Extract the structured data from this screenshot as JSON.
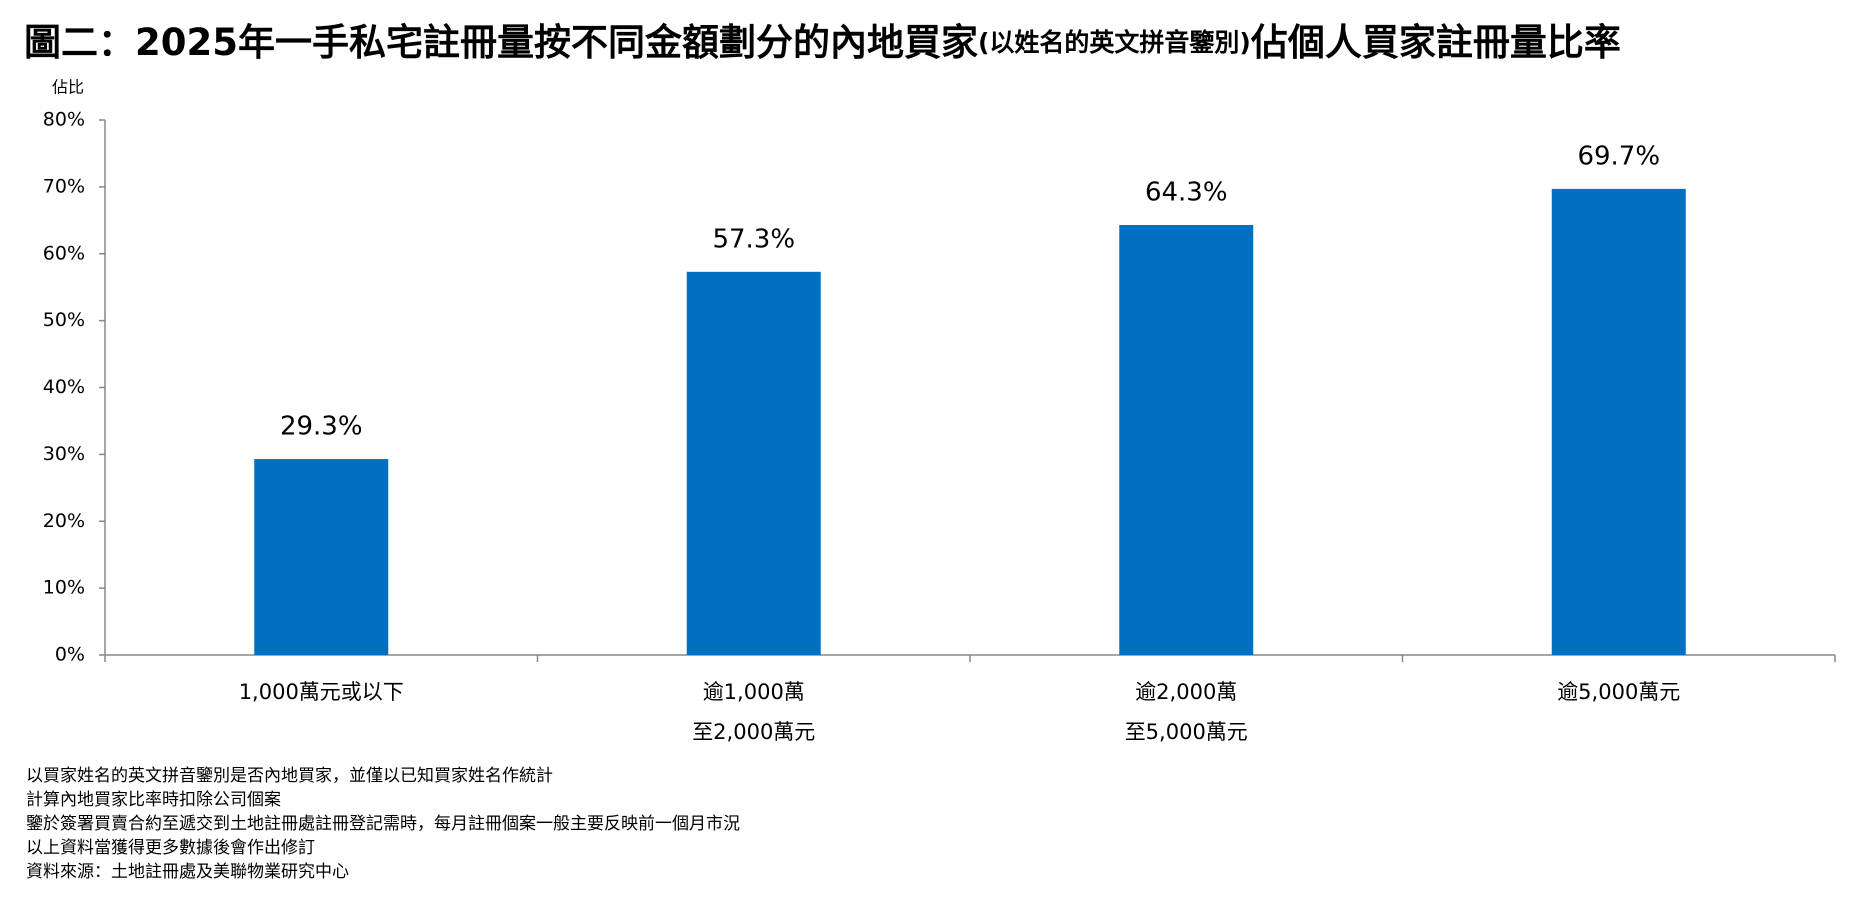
{
  "chart_data": {
    "type": "bar",
    "title": {
      "main": "圖二：2025年一手私宅註冊量按不同金額劃分的內地買家",
      "note": "(以姓名的英文拼音鑒別)",
      "tail": "佔個人買家註冊量比率"
    },
    "y_label": "佔比",
    "categories": [
      [
        "1,000萬元或以下"
      ],
      [
        "逾1,000萬",
        "至2,000萬元"
      ],
      [
        "逾2,000萬",
        "至5,000萬元"
      ],
      [
        "逾5,000萬元"
      ]
    ],
    "values": [
      29.3,
      57.3,
      64.3,
      69.7
    ],
    "value_labels": [
      "29.3%",
      "57.3%",
      "64.3%",
      "69.7%"
    ],
    "color": "#0070c0",
    "ylim": [
      0,
      80
    ],
    "yticks": [
      {
        "value": 0,
        "label": "0%"
      },
      {
        "value": 10,
        "label": "10%"
      },
      {
        "value": 20,
        "label": "20%"
      },
      {
        "value": 30,
        "label": "30%"
      },
      {
        "value": 40,
        "label": "40%"
      },
      {
        "value": 50,
        "label": "50%"
      },
      {
        "value": 60,
        "label": "60%"
      },
      {
        "value": 70,
        "label": "70%"
      },
      {
        "value": 80,
        "label": "80%"
      }
    ],
    "grid": false,
    "footnotes": [
      "以買家姓名的英文拼音鑒別是否內地買家，並僅以已知買家姓名作統計",
      "計算內地買家比率時扣除公司個案",
      "鑒於簽署買賣合約至遞交到土地註冊處註冊登記需時，每月註冊個案一般主要反映前一個月市況",
      "以上資料當獲得更多數據後會作出修訂",
      "資料來源：土地註冊處及美聯物業研究中心"
    ]
  }
}
